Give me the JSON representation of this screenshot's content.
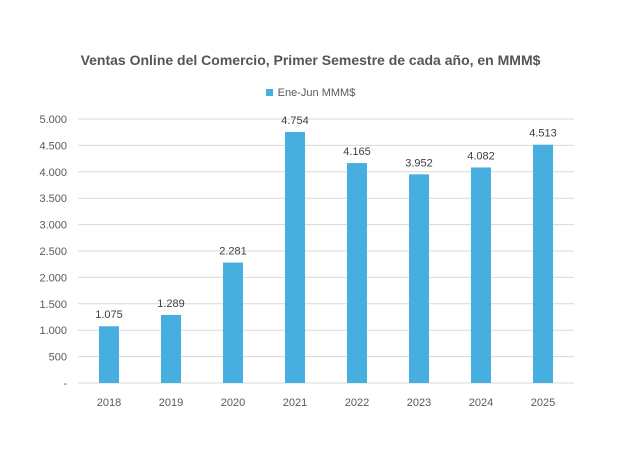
{
  "chart_data": {
    "type": "bar",
    "title": "Ventas Online del Comercio, Primer Semestre de cada año, en MMM$",
    "xlabel": "",
    "ylabel": "",
    "categories": [
      "2018",
      "2019",
      "2020",
      "2021",
      "2022",
      "2023",
      "2024",
      "2025"
    ],
    "series": [
      {
        "name": "Ene-Jun MMM$",
        "values": [
          1075,
          1289,
          2281,
          4754,
          4165,
          3952,
          4082,
          4513
        ],
        "labels": [
          "1.075",
          "1.289",
          "2.281",
          "4.754",
          "4.165",
          "3.952",
          "4.082",
          "4.513"
        ]
      }
    ],
    "ylim": [
      0,
      5000
    ],
    "yticks": [
      0,
      500,
      1000,
      1500,
      2000,
      2500,
      3000,
      3500,
      4000,
      4500,
      5000
    ],
    "ytick_labels": [
      "-",
      "500",
      "1.000",
      "1.500",
      "2.000",
      "2.500",
      "3.000",
      "3.500",
      "4.000",
      "4.500",
      "5.000"
    ],
    "grid": true,
    "legend_position": "top",
    "colors": {
      "bar": "#47AFE0",
      "grid": "#D9D9D9",
      "text": "#595959"
    }
  }
}
